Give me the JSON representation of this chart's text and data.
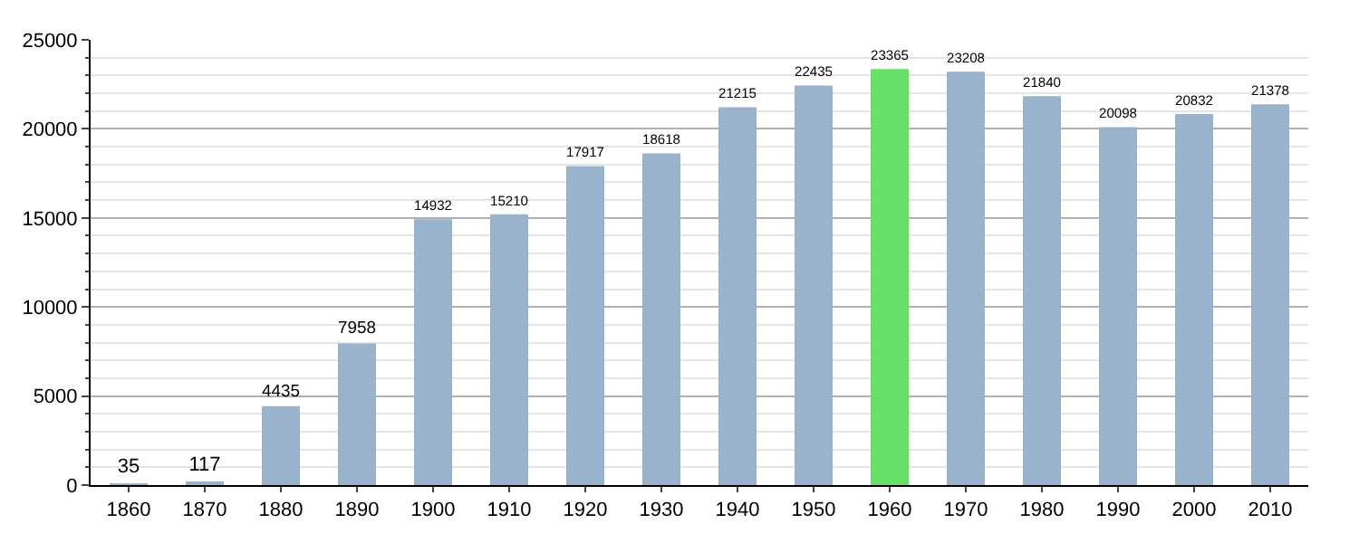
{
  "chart_data": {
    "type": "bar",
    "categories": [
      "1860",
      "1870",
      "1880",
      "1890",
      "1900",
      "1910",
      "1920",
      "1930",
      "1940",
      "1950",
      "1960",
      "1970",
      "1980",
      "1990",
      "2000",
      "2010"
    ],
    "values": [
      35,
      117,
      4435,
      7958,
      14932,
      15210,
      17917,
      18618,
      21215,
      22435,
      23365,
      23208,
      21840,
      20098,
      20832,
      21378
    ],
    "colors": [
      "#9ab3cc",
      "#9ab3cc",
      "#9ab3cc",
      "#9ab3cc",
      "#9ab3cc",
      "#9ab3cc",
      "#9ab3cc",
      "#9ab3cc",
      "#9ab3cc",
      "#9ab3cc",
      "#66e066",
      "#9ab3cc",
      "#9ab3cc",
      "#9ab3cc",
      "#9ab3cc",
      "#9ab3cc"
    ],
    "ylim": [
      0,
      25000
    ],
    "yticks": [
      0,
      5000,
      10000,
      15000,
      20000,
      25000
    ],
    "grid": "y",
    "data_labels": true
  }
}
